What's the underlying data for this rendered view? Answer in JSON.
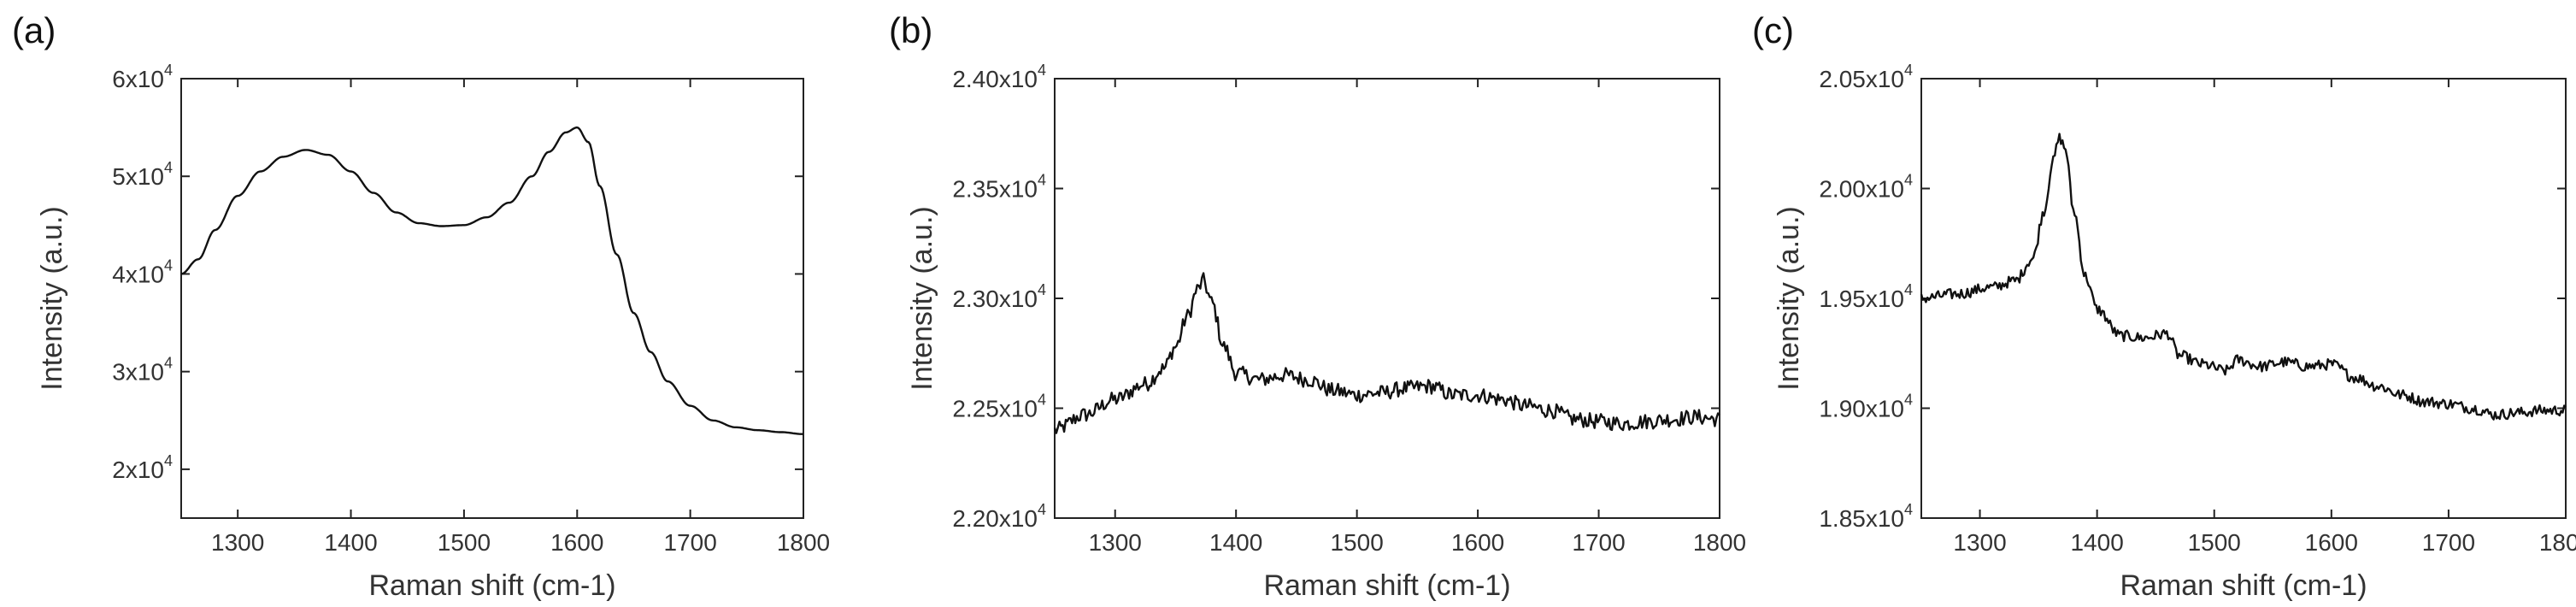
{
  "chart_data": [
    {
      "type": "line",
      "panel_label": "(a)",
      "xlabel": "Raman shift (cm-1)",
      "ylabel": "Intensity (a.u.)",
      "xlim": [
        1250,
        1800
      ],
      "ylim": [
        15000,
        60000
      ],
      "x_ticks": [
        1300,
        1400,
        1500,
        1600,
        1700,
        1800
      ],
      "x_tick_labels": [
        "1300",
        "1400",
        "1500",
        "1600",
        "1700",
        "1800"
      ],
      "y_ticks": [
        20000,
        30000,
        40000,
        50000,
        60000
      ],
      "y_tick_labels": [
        "2x10",
        "3x10",
        "4x10",
        "5x10",
        "6x10"
      ],
      "y_tick_exponent": "4",
      "noise": 0,
      "series": [
        {
          "x": [
            1250,
            1265,
            1280,
            1300,
            1320,
            1340,
            1360,
            1380,
            1400,
            1420,
            1440,
            1460,
            1480,
            1500,
            1520,
            1540,
            1560,
            1575,
            1590,
            1600,
            1610,
            1620,
            1635,
            1650,
            1665,
            1680,
            1700,
            1720,
            1740,
            1760,
            1780,
            1800
          ],
          "y": [
            40000,
            41500,
            44500,
            48000,
            50500,
            52000,
            52700,
            52200,
            50500,
            48300,
            46300,
            45200,
            44900,
            45000,
            45800,
            47300,
            50000,
            52500,
            54500,
            55000,
            53500,
            49000,
            42000,
            36000,
            32000,
            29000,
            26500,
            25000,
            24300,
            24000,
            23800,
            23600
          ]
        }
      ]
    },
    {
      "type": "line",
      "panel_label": "(b)",
      "xlabel": "Raman shift (cm-1)",
      "ylabel": "Intensity (a.u.)",
      "xlim": [
        1250,
        1800
      ],
      "ylim": [
        22000,
        24000
      ],
      "x_ticks": [
        1300,
        1400,
        1500,
        1600,
        1700,
        1800
      ],
      "x_tick_labels": [
        "1300",
        "1400",
        "1500",
        "1600",
        "1700",
        "1800"
      ],
      "y_ticks": [
        22000,
        22500,
        23000,
        23500,
        24000
      ],
      "y_tick_labels": [
        "2.20x10",
        "2.25x10",
        "2.30x10",
        "2.35x10",
        "2.40x10"
      ],
      "y_tick_exponent": "4",
      "noise": 35,
      "series": [
        {
          "x": [
            1250,
            1275,
            1300,
            1325,
            1340,
            1350,
            1360,
            1368,
            1373,
            1380,
            1390,
            1400,
            1420,
            1440,
            1460,
            1480,
            1500,
            1520,
            1540,
            1560,
            1580,
            1600,
            1620,
            1640,
            1660,
            1680,
            1700,
            1720,
            1740,
            1760,
            1780,
            1800
          ],
          "y": [
            22400,
            22470,
            22540,
            22610,
            22680,
            22780,
            22920,
            23040,
            23080,
            22980,
            22780,
            22660,
            22630,
            22650,
            22630,
            22580,
            22560,
            22570,
            22590,
            22600,
            22560,
            22560,
            22540,
            22510,
            22490,
            22450,
            22440,
            22430,
            22440,
            22450,
            22460,
            22450
          ]
        }
      ]
    },
    {
      "type": "line",
      "panel_label": "(c)",
      "xlabel": "Raman shift (cm-1)",
      "ylabel": "Intensity (a.u.)",
      "xlim": [
        1250,
        1800
      ],
      "ylim": [
        18500,
        20500
      ],
      "x_ticks": [
        1300,
        1400,
        1500,
        1600,
        1700,
        1800
      ],
      "x_tick_labels": [
        "1300",
        "1400",
        "1500",
        "1600",
        "1700",
        "1800"
      ],
      "y_ticks": [
        18500,
        19000,
        19500,
        20000,
        20500
      ],
      "y_tick_labels": [
        "1.85x10",
        "1.90x10",
        "1.95x10",
        "2.00x10",
        "2.05x10"
      ],
      "y_tick_exponent": "4",
      "noise": 25,
      "series": [
        {
          "x": [
            1250,
            1280,
            1310,
            1330,
            1345,
            1355,
            1362,
            1368,
            1373,
            1380,
            1390,
            1400,
            1420,
            1440,
            1460,
            1470,
            1490,
            1510,
            1520,
            1540,
            1560,
            1580,
            1600,
            1620,
            1640,
            1660,
            1680,
            1700,
            1720,
            1740,
            1760,
            1780,
            1800
          ],
          "y": [
            19500,
            19520,
            19550,
            19580,
            19680,
            19900,
            20120,
            20230,
            20180,
            19900,
            19600,
            19450,
            19330,
            19320,
            19340,
            19240,
            19200,
            19170,
            19220,
            19190,
            19210,
            19190,
            19200,
            19140,
            19100,
            19060,
            19030,
            19020,
            19000,
            18970,
            18980,
            18990,
            18990
          ]
        }
      ]
    }
  ]
}
